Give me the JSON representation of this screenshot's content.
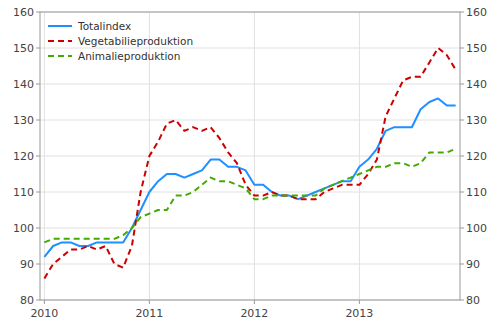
{
  "chart_data": {
    "type": "line",
    "categories": [
      "2010",
      null,
      null,
      null,
      null,
      null,
      null,
      null,
      null,
      null,
      null,
      null,
      "2011",
      null,
      null,
      null,
      null,
      null,
      null,
      null,
      null,
      null,
      null,
      null,
      "2012",
      null,
      null,
      null,
      null,
      null,
      null,
      null,
      null,
      null,
      null,
      null,
      "2013",
      null,
      null,
      null,
      null,
      null,
      null,
      null,
      null,
      null,
      null,
      null
    ],
    "series": [
      {
        "name": "Totalindex",
        "color": "#1e90ff",
        "line_style": "solid",
        "values": [
          92,
          95,
          96,
          96,
          95,
          95,
          96,
          96,
          96,
          96,
          100,
          105,
          110,
          113,
          115,
          115,
          114,
          115,
          116,
          119,
          119,
          117,
          117,
          116,
          112,
          112,
          110,
          109,
          109,
          108,
          109,
          110,
          111,
          112,
          113,
          113,
          117,
          119,
          122,
          127,
          128,
          128,
          128,
          133,
          135,
          136,
          134,
          134
        ]
      },
      {
        "name": "Vegetabilieproduktion",
        "color": "#cc0000",
        "line_style": "dashed",
        "values": [
          86,
          90,
          92,
          94,
          94,
          95,
          94,
          95,
          90,
          89,
          95,
          110,
          120,
          124,
          129,
          130,
          127,
          128,
          127,
          128,
          125,
          121,
          118,
          112,
          109,
          109,
          110,
          109,
          109,
          108,
          108,
          108,
          110,
          111,
          112,
          112,
          112,
          115,
          119,
          131,
          136,
          141,
          142,
          142,
          146,
          150,
          148,
          144
        ]
      },
      {
        "name": "Animalieproduktion",
        "color": "#44aa00",
        "line_style": "dashed",
        "values": [
          96,
          97,
          97,
          97,
          97,
          97,
          97,
          97,
          97,
          98,
          100,
          103,
          104,
          105,
          105,
          109,
          109,
          110,
          112,
          114,
          113,
          113,
          112,
          111,
          108,
          108,
          109,
          109,
          109,
          109,
          109,
          109,
          111,
          112,
          113,
          114,
          115,
          116,
          117,
          117,
          118,
          118,
          117,
          118,
          121,
          121,
          121,
          122
        ]
      }
    ],
    "ylim": [
      80,
      160
    ],
    "yticks": [
      80,
      90,
      100,
      110,
      120,
      130,
      140,
      150,
      160
    ],
    "y2lim": [
      80,
      160
    ],
    "y2ticks": [
      80,
      90,
      100,
      110,
      120,
      130,
      140,
      150,
      160
    ],
    "grid": true,
    "legend": "upper left"
  }
}
